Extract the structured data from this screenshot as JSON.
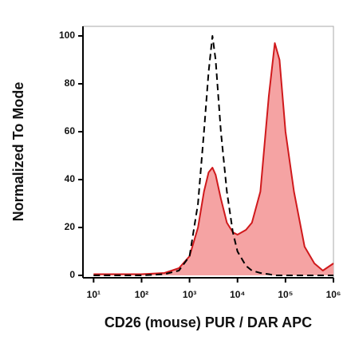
{
  "chart_data": {
    "type": "area",
    "xlabel": "CD26 (mouse) PUR / DAR APC",
    "ylabel": "Normalized To Mode",
    "xscale": "log",
    "x": [
      10,
      100,
      300,
      600,
      1000,
      1500,
      2000,
      2500,
      3000,
      3500,
      4500,
      6000,
      8000,
      10000,
      15000,
      20000,
      30000,
      45000,
      60000,
      75000,
      100000,
      150000,
      250000,
      400000,
      600000,
      1000000
    ],
    "series": [
      {
        "color": "#d0191c",
        "fill": "#f5a3a3",
        "dashed": false,
        "values": [
          0.5,
          0.5,
          1,
          3,
          8,
          20,
          35,
          43,
          45,
          42,
          32,
          22,
          18,
          17,
          19,
          22,
          35,
          75,
          97,
          90,
          60,
          35,
          12,
          5,
          2,
          5
        ]
      },
      {
        "color": "#000000",
        "dashed": true,
        "values": [
          0,
          0,
          0.5,
          2,
          8,
          30,
          60,
          85,
          100,
          90,
          60,
          35,
          18,
          10,
          4,
          2,
          1,
          0.5,
          0,
          0,
          0,
          0,
          0,
          0,
          0,
          0
        ]
      }
    ],
    "xlim": [
      6,
      1000000
    ],
    "xticks": [
      {
        "value": 10,
        "label": "10¹"
      },
      {
        "value": 100,
        "label": "10²"
      },
      {
        "value": 1000,
        "label": "10³"
      },
      {
        "value": 10000,
        "label": "10⁴"
      },
      {
        "value": 100000,
        "label": "10⁵"
      },
      {
        "value": 1000000,
        "label": "10⁶"
      }
    ],
    "ylim": [
      -1,
      104
    ],
    "yticks": [
      0,
      20,
      40,
      60,
      80,
      100
    ]
  }
}
